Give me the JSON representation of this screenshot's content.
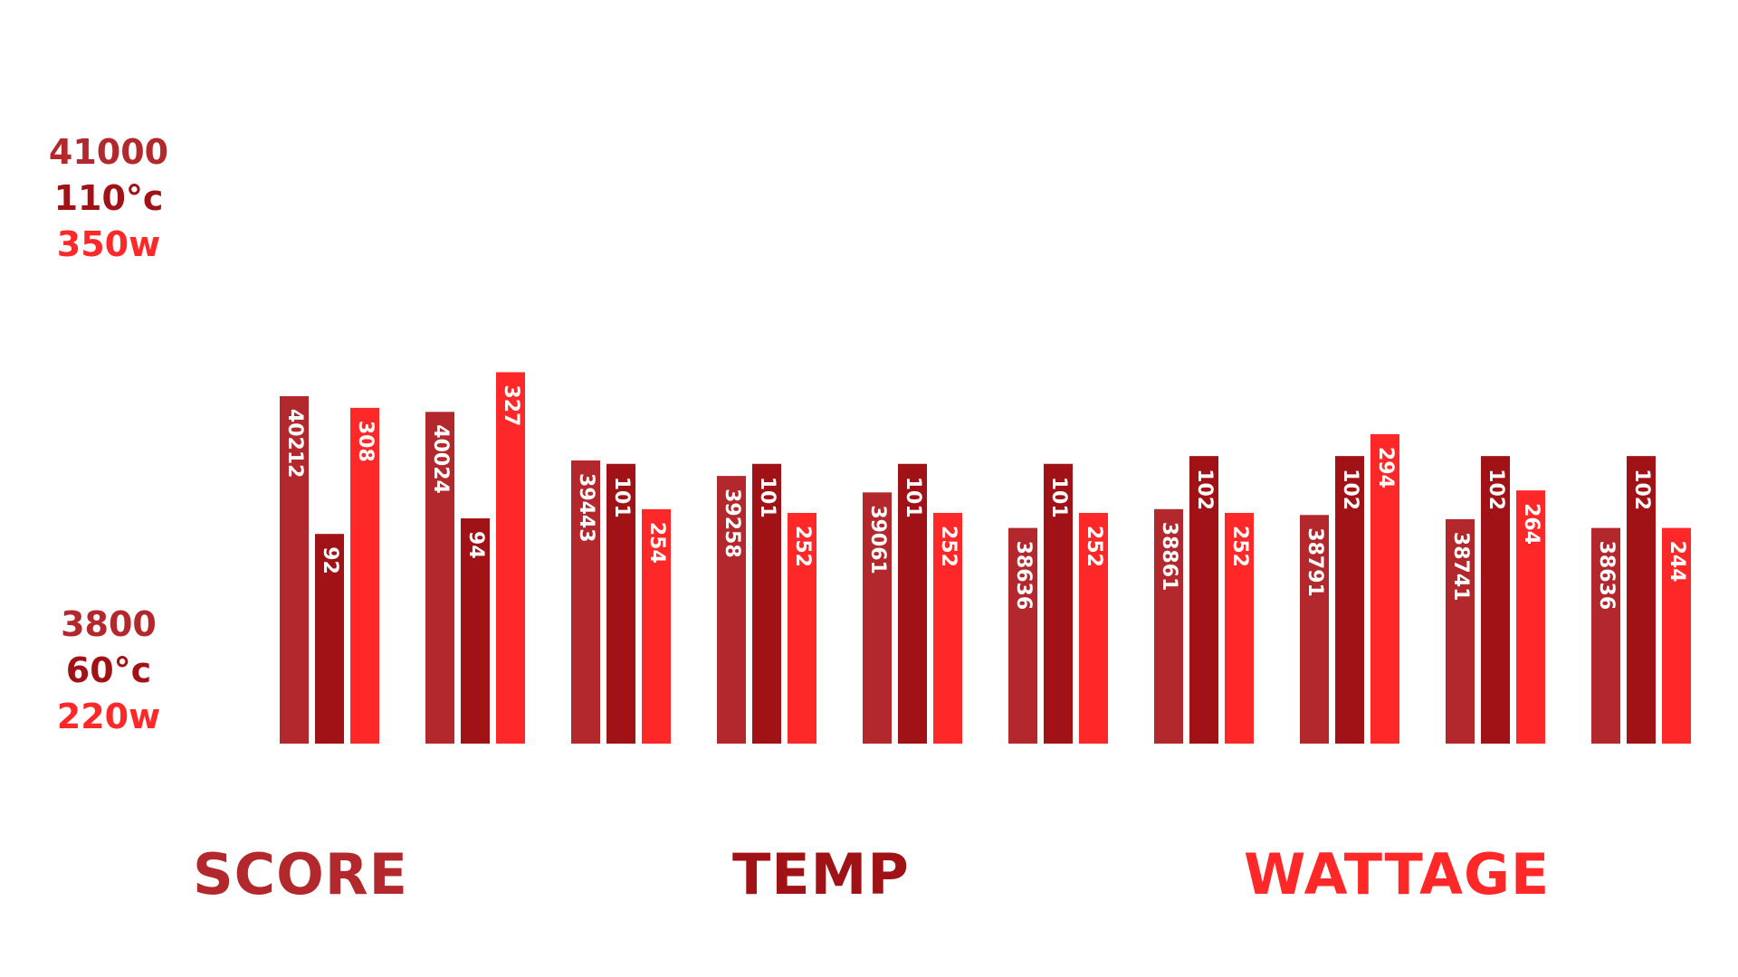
{
  "colors": {
    "score": "#b3282d",
    "temp": "#a01216",
    "wattage": "#fe2828",
    "bar_text": "#ffffff"
  },
  "axis": {
    "top": {
      "score": "41000",
      "temp": "110°c",
      "wattage": "350w"
    },
    "bottom": {
      "score": "3800",
      "temp": "60°c",
      "wattage": "220w"
    }
  },
  "legend": {
    "score": "SCORE",
    "temp": "TEMP",
    "wattage": "WATTAGE"
  },
  "chart_data": {
    "type": "bar",
    "categories": [
      "",
      "",
      "",
      "",
      "",
      "",
      "",
      "",
      "",
      ""
    ],
    "series": [
      {
        "name": "SCORE",
        "values": [
          40212,
          40024,
          39443,
          39258,
          39061,
          38636,
          38861,
          38791,
          38741,
          38636
        ]
      },
      {
        "name": "TEMP",
        "values": [
          92,
          94,
          101,
          101,
          101,
          101,
          102,
          102,
          102,
          102
        ]
      },
      {
        "name": "WATTAGE",
        "values": [
          308,
          327,
          254,
          252,
          252,
          252,
          252,
          294,
          264,
          244
        ]
      }
    ],
    "labels": [
      [
        "40212",
        "92",
        "308"
      ],
      [
        "40024",
        "94",
        "327"
      ],
      [
        "39443",
        "101",
        "254"
      ],
      [
        "39258",
        "101",
        "252"
      ],
      [
        "39061",
        "101",
        "252"
      ],
      [
        "38636",
        "101",
        "252"
      ],
      [
        "38861",
        "102",
        "252"
      ],
      [
        "38791",
        "102",
        "294"
      ],
      [
        "38741",
        "102",
        "264"
      ],
      [
        "38636",
        "102",
        "244"
      ]
    ],
    "ylim": {
      "score": [
        3800,
        41000
      ],
      "temp": [
        60,
        110
      ],
      "wattage": [
        220,
        350
      ]
    },
    "grid": false,
    "legend_position": "bottom"
  }
}
